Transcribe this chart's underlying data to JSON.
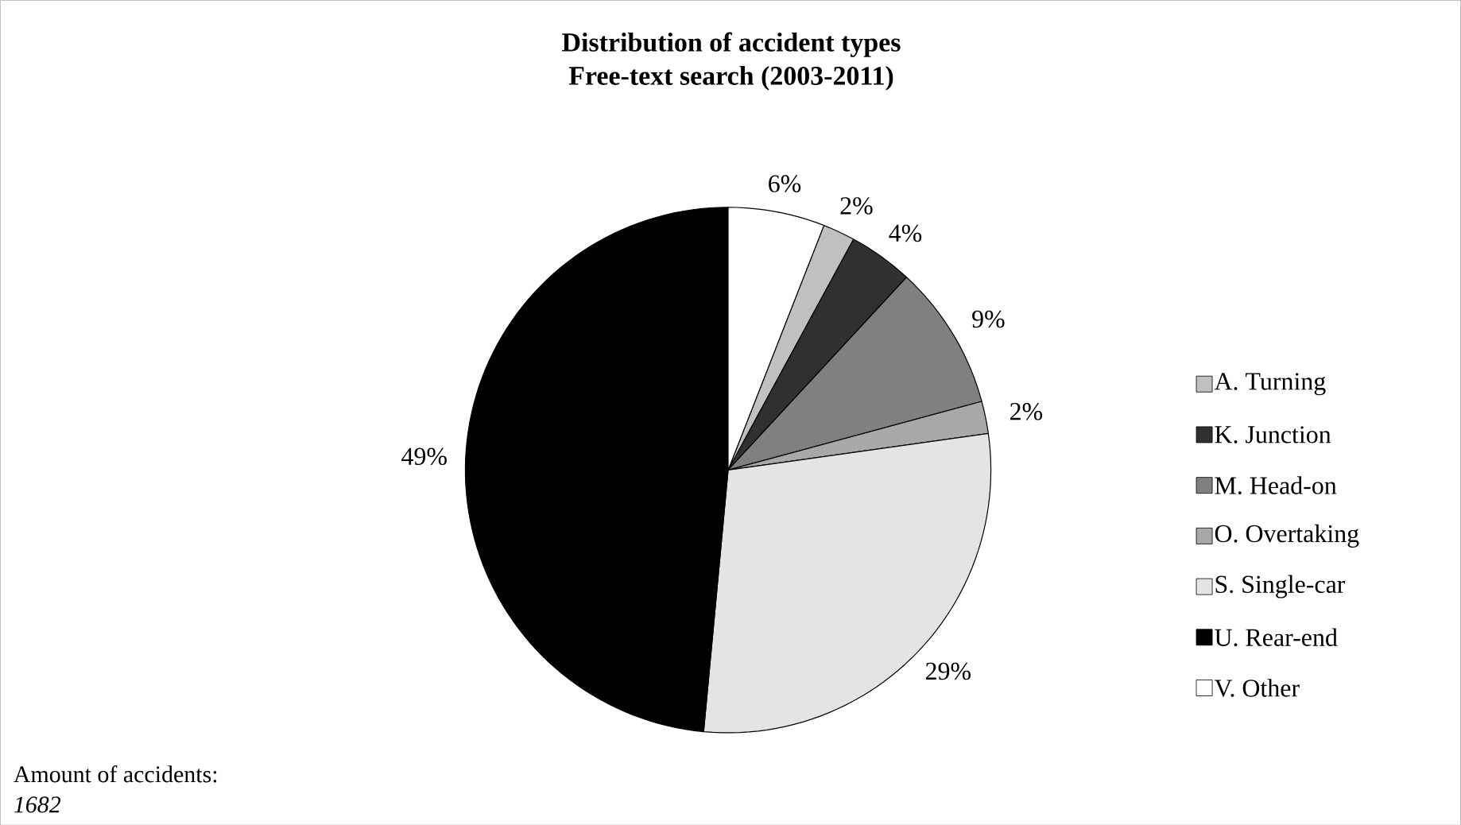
{
  "chart_data": {
    "type": "pie",
    "title": "Distribution of accident types",
    "subtitle": "Free-text search (2003-2011)",
    "categories": [
      "A. Turning",
      "K. Junction",
      "M. Head-on",
      "O. Overtaking",
      "S. Single-car",
      "U. Rear-end",
      "V. Other"
    ],
    "values": [
      2,
      4,
      9,
      2,
      29,
      49,
      6
    ],
    "value_labels": [
      "2%",
      "4%",
      "9%",
      "2%",
      "29%",
      "49%",
      "6%"
    ],
    "colors": [
      "#c0c0c0",
      "#303030",
      "#808080",
      "#a8a8a8",
      "#e4e4e4",
      "#000000",
      "#ffffff"
    ],
    "legend": "right",
    "annotations": [
      "Amount of accidents:",
      "1682"
    ]
  }
}
